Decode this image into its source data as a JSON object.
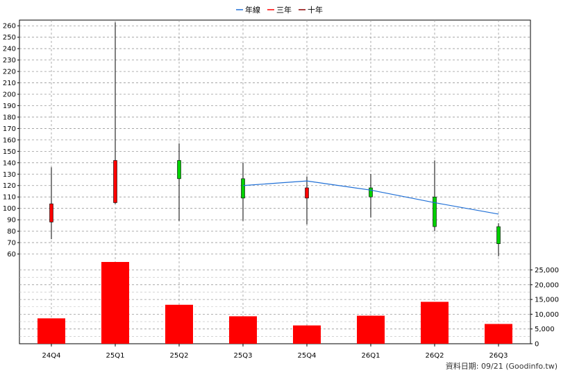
{
  "chart_data": {
    "type": "candlestick_with_volume",
    "legend": {
      "position": "top-center",
      "items": [
        {
          "label": "年線",
          "color": "#1f6fd6"
        },
        {
          "label": "三年",
          "color": "#ff0000"
        },
        {
          "label": "十年",
          "color": "#8b0000"
        }
      ]
    },
    "categories": [
      "24Q4",
      "25Q1",
      "25Q2",
      "25Q3",
      "25Q4",
      "26Q1",
      "26Q2",
      "26Q3"
    ],
    "price_axis": {
      "ylim": [
        50,
        265
      ],
      "ticks": [
        60,
        70,
        80,
        90,
        100,
        110,
        120,
        130,
        140,
        150,
        160,
        170,
        180,
        190,
        200,
        210,
        220,
        230,
        240,
        250,
        260
      ],
      "grid": true
    },
    "volume_axis": {
      "ylim": [
        0,
        27000
      ],
      "ticks": [
        0,
        5000,
        10000,
        15000,
        20000,
        25000
      ],
      "tick_labels": [
        "0",
        "5,000",
        "10,000",
        "15,000",
        "20,000",
        "25,000"
      ],
      "grid": true
    },
    "candles": [
      {
        "open": 88,
        "high": 136,
        "low": 73,
        "close": 104
      },
      {
        "open": 105,
        "high": 263,
        "low": 104,
        "close": 142
      },
      {
        "open": 142,
        "high": 157,
        "low": 89,
        "close": 126
      },
      {
        "open": 126,
        "high": 140,
        "low": 89,
        "close": 109
      },
      {
        "open": 109,
        "high": 128,
        "low": 86,
        "close": 118
      },
      {
        "open": 118,
        "high": 130,
        "low": 92,
        "close": 110
      },
      {
        "open": 110,
        "high": 142,
        "low": 80,
        "close": 84
      },
      {
        "open": 84,
        "high": 87,
        "low": 58,
        "close": 69
      }
    ],
    "up_color": "#ff0000",
    "down_color": "#00d000",
    "volume": [
      8600,
      27800,
      13200,
      9300,
      6200,
      9500,
      14200,
      6700
    ],
    "volume_color": "#ff0000",
    "series": [
      {
        "name": "年線",
        "color": "#1f6fd6",
        "points": [
          [
            3,
            120
          ],
          [
            4,
            124
          ],
          [
            5,
            116
          ],
          [
            6,
            105
          ],
          [
            7,
            95
          ]
        ]
      }
    ],
    "source_note": "資料日期: 09/21  (Goodinfo.tw)"
  }
}
